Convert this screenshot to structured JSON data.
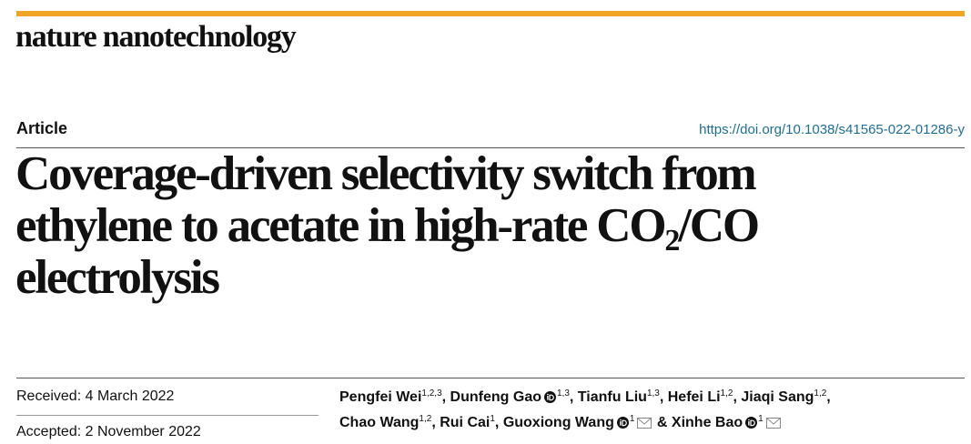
{
  "header": {
    "journal": "nature nanotechnology"
  },
  "article": {
    "type": "Article",
    "doi": "https://doi.org/10.1038/s41565-022-01286-y",
    "title_lines": [
      "Coverage-driven selectivity switch from",
      "ethylene to acetate in high-rate CO",
      "/CO",
      "electrolysis"
    ],
    "title_subscript": "2"
  },
  "dates": {
    "received": "Received: 4 March 2022",
    "accepted": "Accepted: 2 November 2022"
  },
  "authors": {
    "separator": ",",
    "last_separator": "&",
    "lines": [
      [
        {
          "name": "Pengfei Wei",
          "affiliations": "1,2,3",
          "orcid": false,
          "email": false
        },
        {
          "name": "Dunfeng Gao",
          "affiliations": "1,3",
          "orcid": true,
          "email": false
        },
        {
          "name": "Tianfu Liu",
          "affiliations": "1,3",
          "orcid": false,
          "email": false
        },
        {
          "name": "Hefei Li",
          "affiliations": "1,2",
          "orcid": false,
          "email": false
        },
        {
          "name": "Jiaqi Sang",
          "affiliations": "1,2",
          "orcid": false,
          "email": false
        }
      ],
      [
        {
          "name": "Chao Wang",
          "affiliations": "1,2",
          "orcid": false,
          "email": false
        },
        {
          "name": "Rui Cai",
          "affiliations": "1",
          "orcid": false,
          "email": false
        },
        {
          "name": "Guoxiong Wang",
          "affiliations": "1",
          "orcid": true,
          "email": true
        },
        {
          "name": "Xinhe Bao",
          "affiliations": "1",
          "orcid": true,
          "email": true
        }
      ]
    ]
  }
}
